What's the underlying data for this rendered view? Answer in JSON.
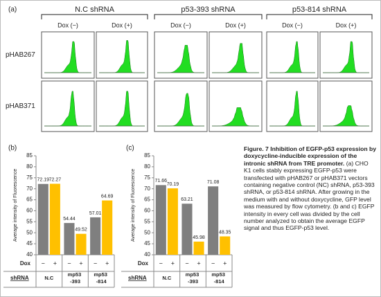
{
  "panel_a": {
    "label": "(a)",
    "groups": [
      {
        "name": "N.C  shRNA",
        "conditions": [
          "Dox (−)",
          "Dox (+)"
        ]
      },
      {
        "name": "p53-393  shRNA",
        "conditions": [
          "Dox (−)",
          "Dox (+)"
        ]
      },
      {
        "name": "p53-814  shRNA",
        "conditions": [
          "Dox (−)",
          "Dox (+)"
        ]
      }
    ],
    "rows": [
      "pHAB267",
      "pHAB371"
    ]
  },
  "chart_data": [
    {
      "type": "bar",
      "panel": "(b)",
      "y_label": "Average intensity of Fluorescence",
      "ylim": [
        40,
        85
      ],
      "yticks": [
        40,
        45,
        50,
        55,
        60,
        65,
        70,
        75,
        80,
        85
      ],
      "row_labels": [
        "Dox",
        "shRNA"
      ],
      "categories": [
        "N.C",
        "mp53 -393",
        "mp53 -814"
      ],
      "series": [
        {
          "name": "−",
          "color": "#7f7f7f",
          "values": [
            72.19,
            54.44,
            57.01
          ]
        },
        {
          "name": "+",
          "color": "#ffc000",
          "values": [
            72.27,
            49.52,
            64.69
          ]
        }
      ]
    },
    {
      "type": "bar",
      "panel": "(c)",
      "y_label": "Average intensity of Fluorescence",
      "ylim": [
        40,
        85
      ],
      "yticks": [
        40,
        45,
        50,
        55,
        60,
        65,
        70,
        75,
        80,
        85
      ],
      "row_labels": [
        "Dox",
        "shRNA"
      ],
      "categories": [
        "N.C",
        "mp53 -393",
        "mp53 -814"
      ],
      "series": [
        {
          "name": "−",
          "color": "#7f7f7f",
          "values": [
            71.66,
            63.21,
            71.08
          ]
        },
        {
          "name": "+",
          "color": "#ffc000",
          "values": [
            70.19,
            45.98,
            48.35
          ]
        }
      ]
    }
  ],
  "caption": {
    "title": "Figure. 7 Inhibition of EGFP-p53 expression by doxycycline-inducible expression of the intronic shRNA from TRE promoter.",
    "body": "(a) CHO K1 cells stably expressing EGFP-p53 were transfected with pHAB267 or pHAB371 vectors containing negative control (NC) shRNA, p53-393 shRNA, or p53-814 shRNA. After growing in the medium with and without doxycycline, GFP level was measured by flow cytometry. (b and c)  EGFP intensity in every cell was divided by the cell number analyzed to obtain the average EGFP signal and thus EGFP-p53 level."
  }
}
